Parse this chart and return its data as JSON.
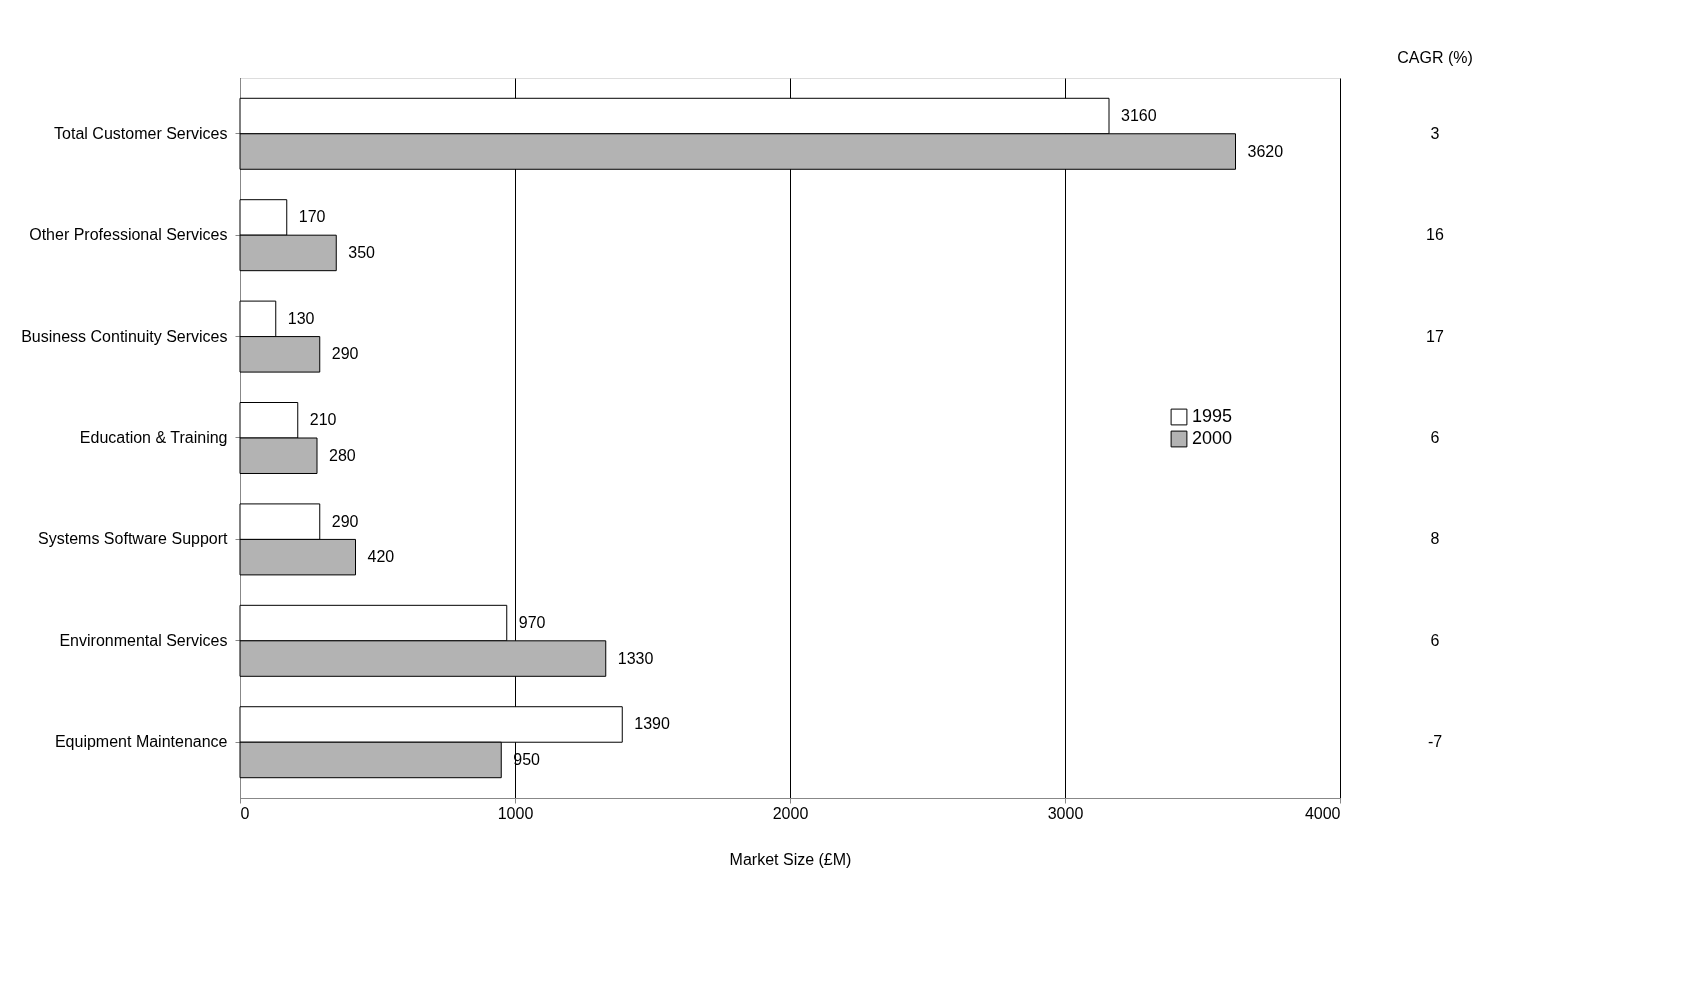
{
  "chart_data": {
    "type": "bar",
    "orientation": "horizontal",
    "xlabel": "Market Size (£M)",
    "categories": [
      "Total Customer Services",
      "Other Professional Services",
      "Business Continuity Services",
      "Education & Training",
      "Systems Software Support",
      "Environmental Services",
      "Equipment Maintenance"
    ],
    "series": [
      {
        "name": "1995",
        "color": "#ffffff",
        "values": [
          3160,
          170,
          130,
          210,
          290,
          970,
          1390
        ]
      },
      {
        "name": "2000",
        "color": "#b3b3b3",
        "values": [
          3620,
          350,
          290,
          280,
          420,
          1330,
          950
        ]
      }
    ],
    "xlim": [
      0,
      4000
    ],
    "xticks": [
      0,
      1000,
      2000,
      3000,
      4000
    ],
    "grid": "x",
    "legend": "right",
    "data_labels": true,
    "annotations": [
      "CAGR (%)",
      "3",
      "16",
      "17",
      "6",
      "8",
      "6",
      "-7"
    ]
  }
}
